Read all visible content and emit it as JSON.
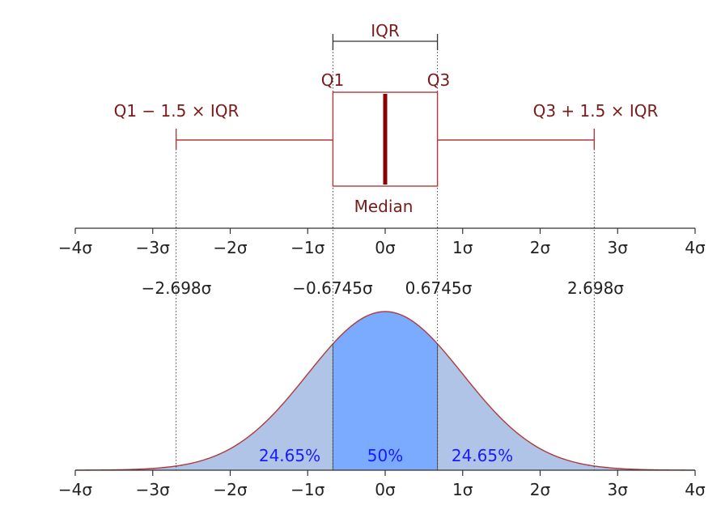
{
  "labels": {
    "iqr": "IQR",
    "q1": "Q1",
    "q3": "Q3",
    "lower_whisker": "Q1 − 1.5 × IQR",
    "upper_whisker": "Q3 + 1.5 × IQR",
    "median": "Median"
  },
  "sigma_ticks": [
    "−4σ",
    "−3σ",
    "−2σ",
    "−1σ",
    "0σ",
    "1σ",
    "2σ",
    "3σ",
    "4σ"
  ],
  "key_values": {
    "lower_fence": "−2.698σ",
    "q1": "−0.6745σ",
    "q3": "0.6745σ",
    "upper_fence": "2.698σ"
  },
  "areas": {
    "left": "24.65%",
    "middle": "50%",
    "right": "24.65%"
  },
  "colors": {
    "box": "#b03a3a",
    "median_line": "#8b0000",
    "label_text": "#7a1a1a",
    "curve": "#b03a3a",
    "tail_fill": "#b0c4e8",
    "middle_fill": "#7aabff",
    "percent_text": "#1a1aff"
  },
  "chart_data": {
    "type": "area",
    "xlim": [
      -4,
      4
    ],
    "ticks": [
      -4,
      -3,
      -2,
      -1,
      0,
      1,
      2,
      3,
      4
    ],
    "boxplot": {
      "lower_fence": -2.698,
      "q1": -0.6745,
      "median": 0,
      "q3": 0.6745,
      "upper_fence": 2.698
    },
    "distribution": "normal",
    "mean": 0,
    "sd": 1,
    "regions": [
      {
        "from": -4,
        "to": -0.6745,
        "percent": 24.65
      },
      {
        "from": -0.6745,
        "to": 0.6745,
        "percent": 50
      },
      {
        "from": 0.6745,
        "to": 4,
        "percent": 24.65
      }
    ]
  }
}
